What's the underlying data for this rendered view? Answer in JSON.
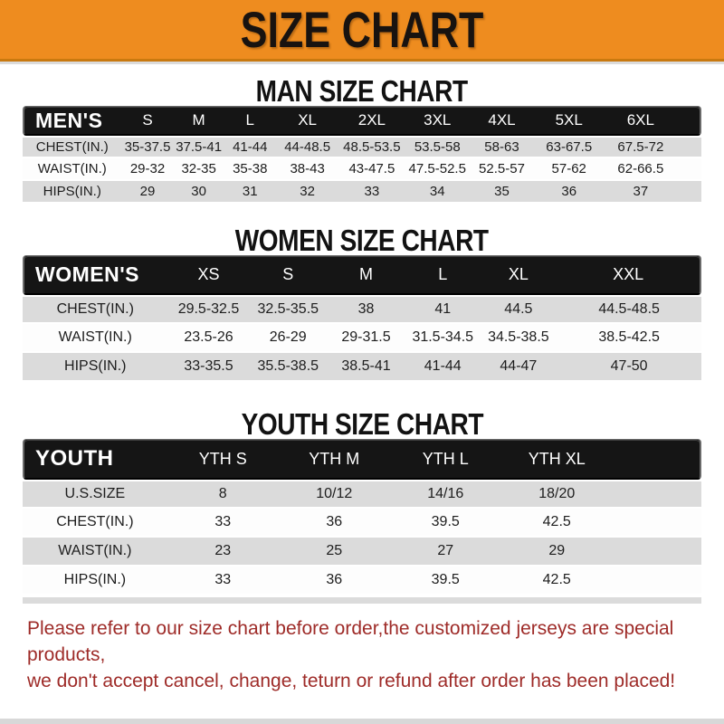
{
  "banner": {
    "title": "SIZE CHART",
    "background_color": "#EE8C1F",
    "title_color": "#181310"
  },
  "sections": [
    {
      "heading": "MAN SIZE CHART",
      "table": {
        "header_label": "MEN'S",
        "columns": [
          "S",
          "M",
          "L",
          "XL",
          "2XL",
          "3XL",
          "4XL",
          "5XL",
          "6XL"
        ],
        "rows": [
          {
            "label": "CHEST(IN.)",
            "values": [
              "35-37.5",
              "37.5-41",
              "41-44",
              "44-48.5",
              "48.5-53.5",
              "53.5-58",
              "58-63",
              "63-67.5",
              "67.5-72"
            ]
          },
          {
            "label": "WAIST(IN.)",
            "values": [
              "29-32",
              "32-35",
              "35-38",
              "38-43",
              "43-47.5",
              "47.5-52.5",
              "52.5-57",
              "57-62",
              "62-66.5"
            ]
          },
          {
            "label": "HIPS(IN.)",
            "values": [
              "29",
              "30",
              "31",
              "32",
              "33",
              "34",
              "35",
              "36",
              "37"
            ]
          }
        ]
      }
    },
    {
      "heading": "WOMEN SIZE CHART",
      "table": {
        "header_label": "WOMEN'S",
        "columns": [
          "XS",
          "S",
          "M",
          "L",
          "XL",
          "XXL"
        ],
        "rows": [
          {
            "label": "CHEST(IN.)",
            "values": [
              "29.5-32.5",
              "32.5-35.5",
              "38",
              "41",
              "44.5",
              "44.5-48.5"
            ]
          },
          {
            "label": "WAIST(IN.)",
            "values": [
              "23.5-26",
              "26-29",
              "29-31.5",
              "31.5-34.5",
              "34.5-38.5",
              "38.5-42.5"
            ]
          },
          {
            "label": "HIPS(IN.)",
            "values": [
              "33-35.5",
              "35.5-38.5",
              "38.5-41",
              "41-44",
              "44-47",
              "47-50"
            ]
          }
        ]
      }
    },
    {
      "heading": "YOUTH SIZE CHART",
      "table": {
        "header_label": "YOUTH",
        "columns": [
          "YTH S",
          "YTH M",
          "YTH L",
          "YTH XL"
        ],
        "rows": [
          {
            "label": "U.S.SIZE",
            "values": [
              "8",
              "10/12",
              "14/16",
              "18/20"
            ]
          },
          {
            "label": "CHEST(IN.)",
            "values": [
              "33",
              "36",
              "39.5",
              "42.5"
            ]
          },
          {
            "label": "WAIST(IN.)",
            "values": [
              "23",
              "25",
              "27",
              "29"
            ]
          },
          {
            "label": "HIPS(IN.)",
            "values": [
              "33",
              "36",
              "39.5",
              "42.5"
            ]
          }
        ]
      }
    }
  ],
  "footer": {
    "lines": [
      "Please refer to our size chart before order,the customized jerseys are special products,",
      "we don't accept cancel, change, teturn or refund after order has been placed!"
    ],
    "text_color": "#9E2B28"
  },
  "colors": {
    "banner_orange": "#EE8C1F",
    "header_bar_black": "#151515",
    "stripe_gray": "#DBDBDB"
  }
}
